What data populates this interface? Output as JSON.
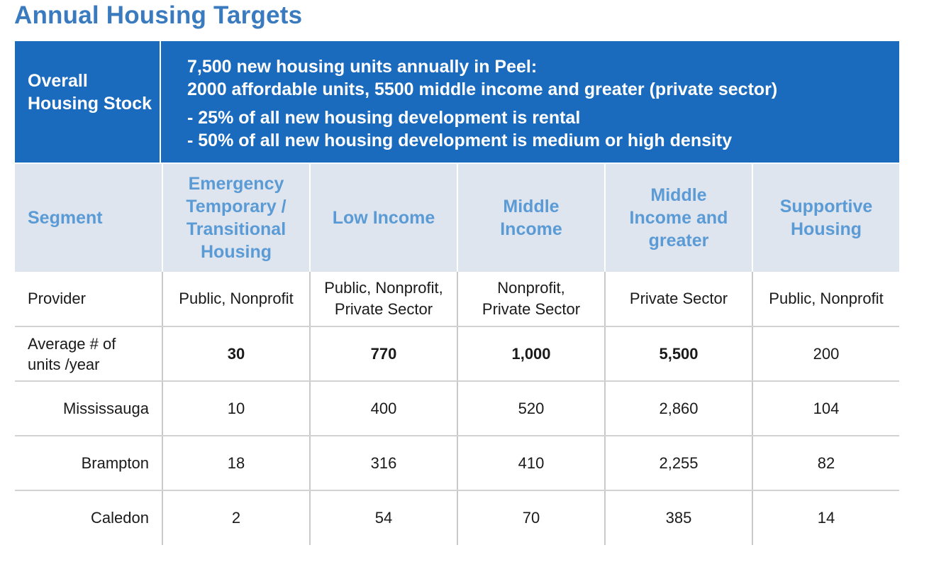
{
  "title": "Annual Housing Targets",
  "banner": {
    "label": "Overall Housing Stock",
    "line1": "7,500 new housing units annually in Peel:",
    "line2": "2000 affordable units, 5500 middle income and greater (private sector)",
    "bullet1": "-  25% of all new housing development is rental",
    "bullet2": "-  50% of all new housing development is medium or high density"
  },
  "table": {
    "segment_label": "Segment",
    "columns": [
      "Emergency Temporary / Transitional Housing",
      "Low Income",
      "Middle Income",
      "Middle Income and greater",
      "Supportive Housing"
    ],
    "provider": {
      "label": "Provider",
      "values": [
        "Public, Nonprofit",
        "Public, Nonprofit, Private Sector",
        "Nonprofit, Private Sector",
        "Private Sector",
        "Public, Nonprofit"
      ]
    },
    "average": {
      "label": "Average # of units /year",
      "values": [
        "30",
        "770",
        "1,000",
        "5,500",
        "200"
      ]
    },
    "cities": [
      {
        "name": "Mississauga",
        "values": [
          "10",
          "400",
          "520",
          "2,860",
          "104"
        ]
      },
      {
        "name": "Brampton",
        "values": [
          "18",
          "316",
          "410",
          "2,255",
          "82"
        ]
      },
      {
        "name": "Caledon",
        "values": [
          "2",
          "54",
          "70",
          "385",
          "14"
        ]
      }
    ]
  },
  "colors": {
    "title": "#3a7bbf",
    "banner": "#1a6bbd",
    "header_bg": "#dfe5ef",
    "header_text": "#5b9bd5"
  }
}
